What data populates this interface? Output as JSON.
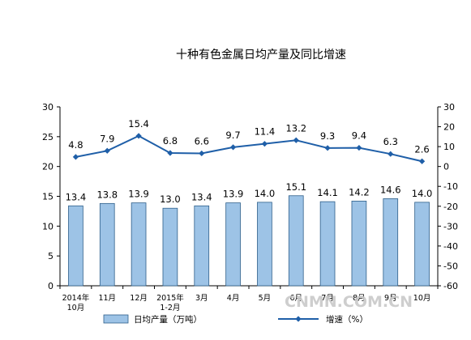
{
  "chart_data": {
    "type": "bar",
    "title": "十种有色金属日均产量及同比增速",
    "categories": [
      [
        "2014年",
        "10月"
      ],
      [
        "11月"
      ],
      [
        "12月"
      ],
      [
        "2015年",
        "1-2月"
      ],
      [
        "3月"
      ],
      [
        "4月"
      ],
      [
        "5月"
      ],
      [
        "6月"
      ],
      [
        "7月"
      ],
      [
        "8月"
      ],
      [
        "9月"
      ],
      [
        "10月"
      ]
    ],
    "series": [
      {
        "name": "日均产量（万吨）",
        "type": "bar",
        "axis": "left",
        "values": [
          13.4,
          13.8,
          13.9,
          13.0,
          13.4,
          13.9,
          14.0,
          15.1,
          14.1,
          14.2,
          14.6,
          14.0
        ],
        "labels": [
          "13.4",
          "13.8",
          "13.9",
          "13.0",
          "13.4",
          "13.9",
          "14.0",
          "15.1",
          "14.1",
          "14.2",
          "14.6",
          "14.0"
        ]
      },
      {
        "name": "增速（%）",
        "type": "line",
        "axis": "right",
        "values": [
          4.8,
          7.9,
          15.4,
          6.8,
          6.6,
          9.7,
          11.4,
          13.2,
          9.3,
          9.4,
          6.3,
          2.6
        ],
        "labels": [
          "4.8",
          "7.9",
          "15.4",
          "6.8",
          "6.6",
          "9.7",
          "11.4",
          "13.2",
          "9.3",
          "9.4",
          "6.3",
          "2.6"
        ]
      }
    ],
    "y_left": {
      "min": 0,
      "max": 30,
      "step": 5
    },
    "y_right": {
      "min": -60,
      "max": 30,
      "step": 10
    },
    "grid": false,
    "legend": "bottom",
    "colors": {
      "bar_fill": "#9dc3e6",
      "bar_stroke": "#2e5f8a",
      "line": "#1f5fa8",
      "marker": "#1f5fa8"
    }
  },
  "watermark": "CNMN.COM.CN"
}
